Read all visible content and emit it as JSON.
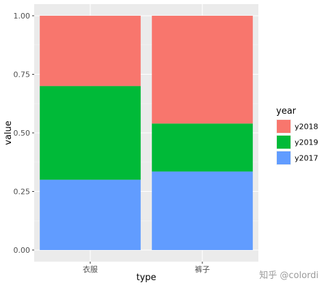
{
  "chart_data": {
    "type": "bar",
    "stacked": true,
    "categories": [
      "衣服",
      "裤子"
    ],
    "series": [
      {
        "name": "y2017",
        "values": [
          0.3,
          0.335
        ],
        "color": "#619CFF"
      },
      {
        "name": "y2019",
        "values": [
          0.4,
          0.205
        ],
        "color": "#00BA38"
      },
      {
        "name": "y2018",
        "values": [
          0.3,
          0.46
        ],
        "color": "#F8766D"
      }
    ],
    "xlabel": "type",
    "ylabel": "value",
    "ylim": [
      0,
      1
    ],
    "yticks": [
      "0.00",
      "0.25",
      "0.50",
      "0.75",
      "1.00"
    ],
    "ytick_values": [
      0,
      0.25,
      0.5,
      0.75,
      1.0
    ],
    "legend": {
      "title": "year",
      "position": "right",
      "entries": [
        {
          "label": "y2018",
          "color": "#F8766D"
        },
        {
          "label": "y2019",
          "color": "#00BA38"
        },
        {
          "label": "y2017",
          "color": "#619CFF"
        }
      ]
    },
    "grid": true,
    "panel_background": "#EBEBEB"
  },
  "watermark": "知乎 @colordi"
}
